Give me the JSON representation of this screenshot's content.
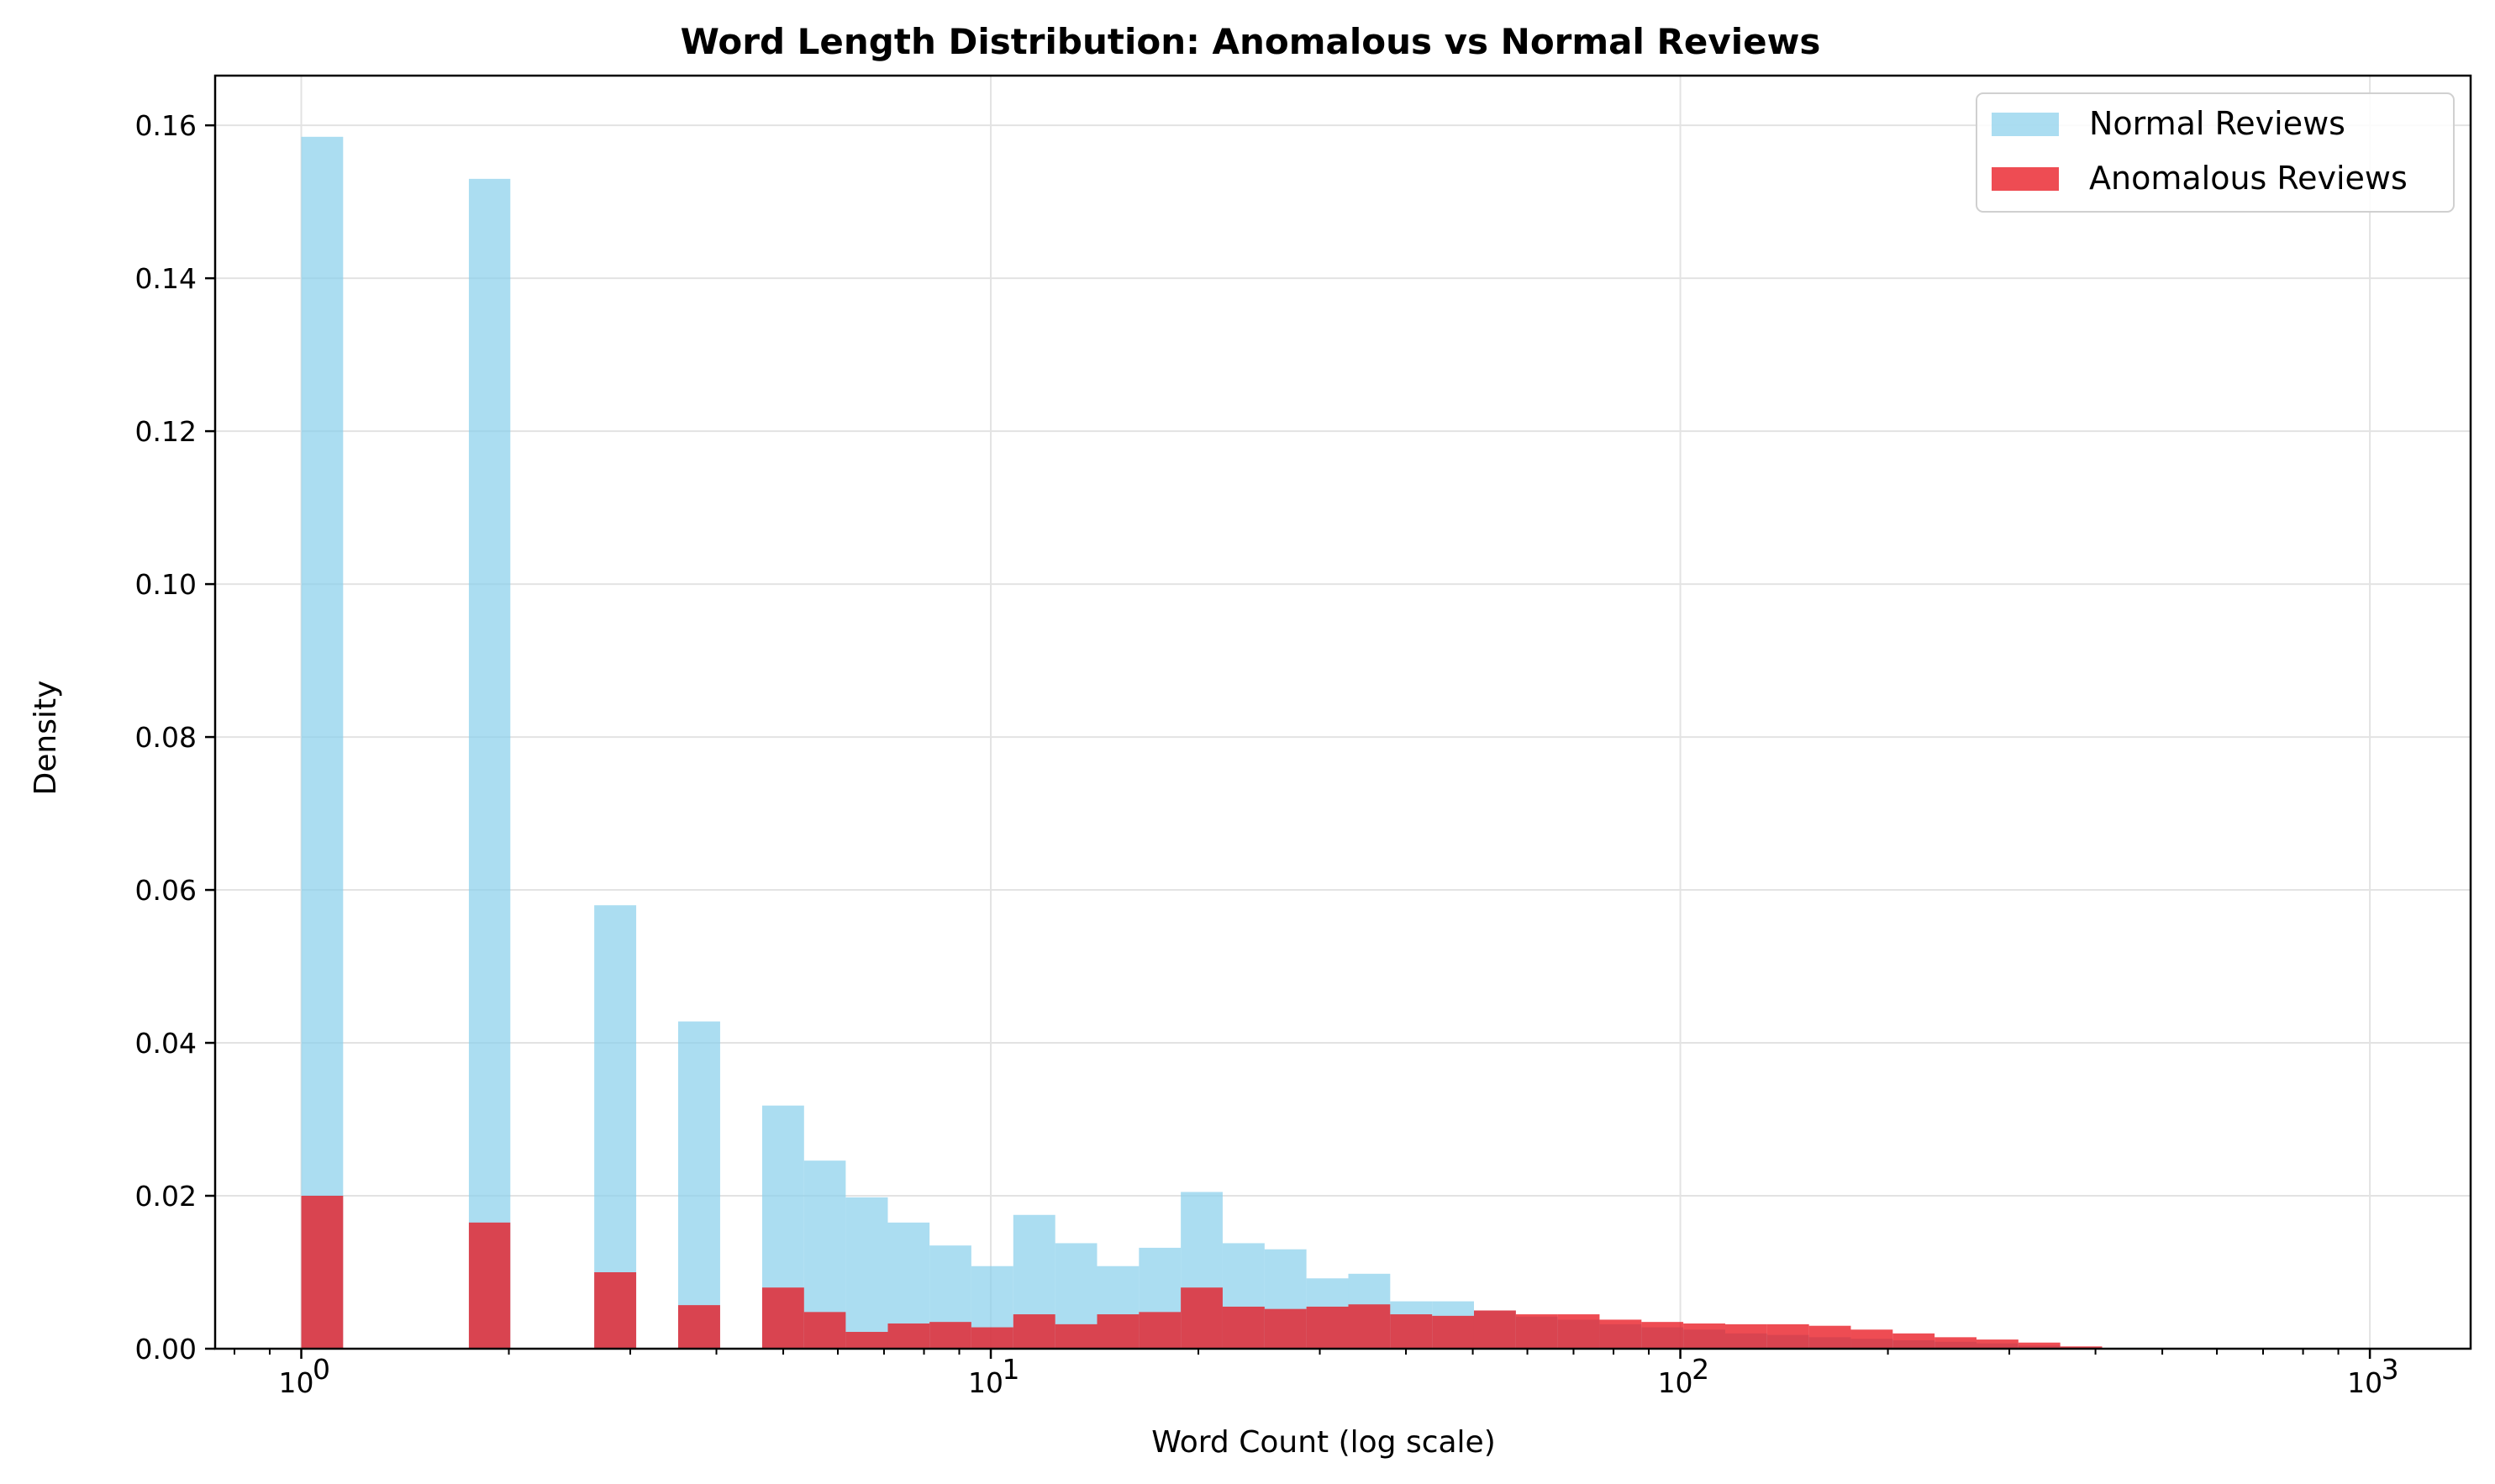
{
  "chart_data": {
    "type": "bar",
    "title": "Word Length Distribution: Anomalous vs Normal Reviews",
    "xlabel": "Word Count (log scale)",
    "ylabel": "Density",
    "xscale": "log",
    "xlim": [
      0.75,
      1400
    ],
    "ylim": [
      0,
      0.1665
    ],
    "yticks": [
      0.0,
      0.02,
      0.04,
      0.06,
      0.08,
      0.1,
      0.12,
      0.14,
      0.16
    ],
    "ytick_labels": [
      "0.00",
      "0.02",
      "0.04",
      "0.06",
      "0.08",
      "0.10",
      "0.12",
      "0.14",
      "0.16"
    ],
    "xticks": [
      1,
      10,
      100,
      1000
    ],
    "xtick_labels": [
      [
        "10",
        "0"
      ],
      [
        "10",
        "1"
      ],
      [
        "10",
        "2"
      ],
      [
        "10",
        "3"
      ]
    ],
    "grid": true,
    "legend_position": "top-right",
    "bin_edges": [
      1,
      1.15,
      1.32,
      1.52,
      1.75,
      2.01,
      2.32,
      2.66,
      3.06,
      3.52,
      4.05,
      4.66,
      5.36,
      6.16,
      7.09,
      8.15,
      9.37,
      10.78,
      12.4,
      14.26,
      16.4,
      18.86,
      21.69,
      24.95,
      28.69,
      33.0,
      37.95,
      43.65,
      50.2,
      57.74,
      66.4,
      76.36,
      87.83,
      101.0,
      116.17,
      133.6,
      153.66,
      176.72,
      203.25,
      233.75,
      268.84,
      309.19,
      355.6,
      408.97,
      470.35,
      540.94,
      622.14,
      715.52,
      822.91,
      946.43,
      1000
    ],
    "series": [
      {
        "name": "Normal Reviews",
        "color": "#87ceeb",
        "values": [
          0.1585,
          0,
          0,
          0,
          0.153,
          0,
          0,
          0.058,
          0,
          0.0428,
          0,
          0.0318,
          0.0246,
          0.0198,
          0.0165,
          0.0135,
          0.0108,
          0.0175,
          0.0138,
          0.0108,
          0.0132,
          0.0205,
          0.0138,
          0.013,
          0.0092,
          0.0098,
          0.0062,
          0.0062,
          0.005,
          0.0042,
          0.0038,
          0.0032,
          0.0028,
          0.0025,
          0.002,
          0.0018,
          0.0015,
          0.0013,
          0.0011,
          0.0009,
          0.0007,
          0.0004,
          0.0002,
          0.0001,
          0.0001,
          0.0001,
          0.0001,
          0.0001,
          0.0001,
          0.0001
        ]
      },
      {
        "name": "Anomalous Reviews",
        "color": "#e8101a",
        "values": [
          0.02,
          0,
          0,
          0,
          0.0165,
          0,
          0,
          0.01,
          0,
          0.0057,
          0,
          0.008,
          0.0048,
          0.0022,
          0.0033,
          0.0035,
          0.0028,
          0.0045,
          0.0032,
          0.0045,
          0.0048,
          0.008,
          0.0055,
          0.0052,
          0.0055,
          0.0058,
          0.0045,
          0.0043,
          0.005,
          0.0045,
          0.0045,
          0.0038,
          0.0035,
          0.0033,
          0.0032,
          0.0032,
          0.003,
          0.0025,
          0.002,
          0.0015,
          0.0012,
          0.0008,
          0.0003,
          0,
          0,
          0,
          0,
          0,
          0,
          0
        ]
      }
    ]
  }
}
